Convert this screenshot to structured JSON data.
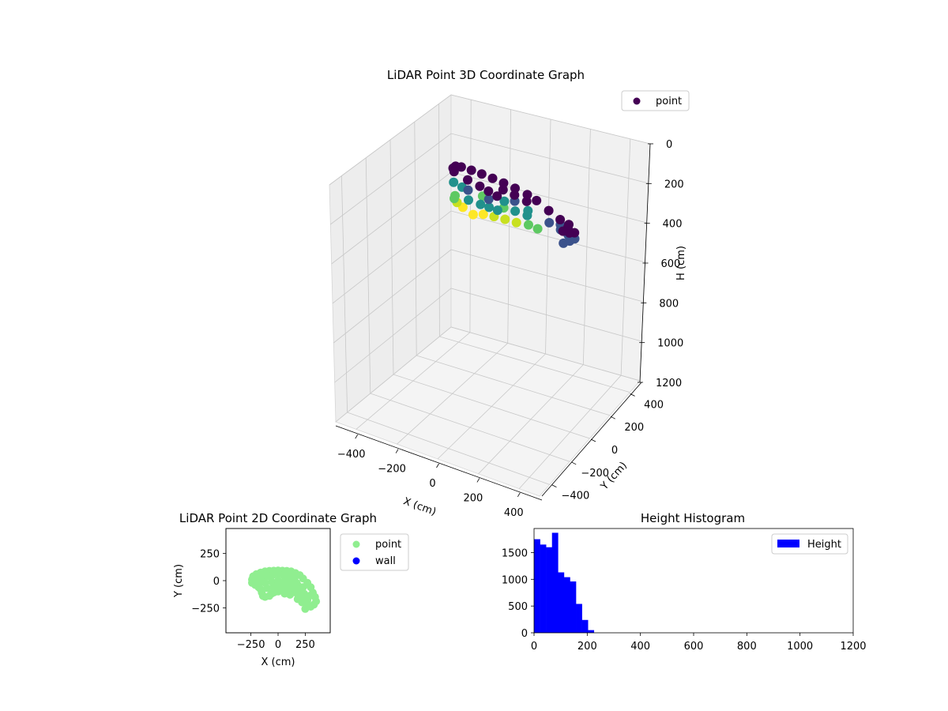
{
  "chart_data": [
    {
      "type": "scatter",
      "projection": "3d",
      "title": "LiDAR Point 3D Coordinate Graph",
      "xlabel": "X (cm)",
      "ylabel": "Y (cm)",
      "zlabel": "H (cm)",
      "xlim": [
        -500,
        500
      ],
      "ylim": [
        -500,
        500
      ],
      "zlim": [
        0,
        1200
      ],
      "z_inverted": true,
      "x_ticks": [
        -400,
        -200,
        0,
        200,
        400
      ],
      "y_ticks": [
        -400,
        -200,
        0,
        200,
        400
      ],
      "z_ticks": [
        0,
        200,
        400,
        600,
        800,
        1000,
        1200
      ],
      "colormap": "viridis",
      "legend": {
        "entries": [
          {
            "label": "point",
            "color": "#440154"
          }
        ],
        "placement": "upper-right"
      },
      "series": [
        {
          "name": "point",
          "points": [
            [
              -250,
              20,
              0
            ],
            [
              -220,
              60,
              0
            ],
            [
              -180,
              80,
              0
            ],
            [
              -120,
              90,
              0
            ],
            [
              -60,
              95,
              0
            ],
            [
              0,
              95,
              0
            ],
            [
              60,
              90,
              0
            ],
            [
              120,
              80,
              0
            ],
            [
              180,
              60,
              0
            ],
            [
              220,
              30,
              0
            ],
            [
              -260,
              -20,
              0
            ],
            [
              -200,
              -60,
              0
            ],
            [
              -140,
              -80,
              0
            ],
            [
              -100,
              -100,
              0
            ],
            [
              -60,
              -120,
              0
            ],
            [
              40,
              50,
              20
            ],
            [
              100,
              40,
              20
            ],
            [
              160,
              20,
              20
            ],
            [
              260,
              -40,
              0
            ],
            [
              300,
              -100,
              0
            ],
            [
              320,
              -160,
              0
            ],
            [
              340,
              -200,
              0
            ],
            [
              300,
              -230,
              0
            ],
            [
              260,
              -240,
              0
            ],
            [
              340,
              -120,
              0
            ],
            [
              -250,
              20,
              150
            ],
            [
              -220,
              60,
              180
            ],
            [
              -180,
              80,
              200
            ],
            [
              -120,
              90,
              220
            ],
            [
              -60,
              95,
              200
            ],
            [
              0,
              95,
              190
            ],
            [
              60,
              90,
              180
            ],
            [
              120,
              80,
              170
            ],
            [
              180,
              60,
              150
            ],
            [
              220,
              30,
              140
            ],
            [
              -260,
              -20,
              120
            ],
            [
              -200,
              -60,
              100
            ],
            [
              -140,
              -80,
              90
            ],
            [
              -100,
              -100,
              80
            ],
            [
              -60,
              -120,
              70
            ],
            [
              40,
              50,
              110
            ],
            [
              100,
              40,
              100
            ],
            [
              160,
              20,
              90
            ],
            [
              260,
              -40,
              60
            ],
            [
              300,
              -100,
              50
            ],
            [
              320,
              -160,
              40
            ],
            [
              340,
              -200,
              30
            ],
            [
              300,
              -230,
              40
            ],
            [
              260,
              -240,
              60
            ],
            [
              340,
              -120,
              50
            ],
            [
              -250,
              20,
              70
            ],
            [
              -180,
              80,
              100
            ],
            [
              -60,
              95,
              110
            ],
            [
              60,
              90,
              90
            ],
            [
              180,
              60,
              80
            ],
            [
              -200,
              -60,
              50
            ],
            [
              -100,
              -100,
              40
            ],
            [
              100,
              40,
              50
            ],
            [
              300,
              -100,
              25
            ],
            [
              320,
              -160,
              20
            ]
          ]
        }
      ]
    },
    {
      "type": "scatter",
      "title": "LiDAR Point 2D Coordinate Graph",
      "xlabel": "X (cm)",
      "ylabel": "Y (cm)",
      "xlim": [
        -480,
        480
      ],
      "ylim": [
        -480,
        480
      ],
      "x_ticks": [
        -250,
        0,
        250
      ],
      "y_ticks": [
        250,
        0,
        -250
      ],
      "x_tick_labels": [
        "−250",
        "0",
        "250"
      ],
      "y_tick_labels": [
        "250",
        "0",
        "−250"
      ],
      "legend": {
        "entries": [
          {
            "label": "point",
            "color": "#90ee90"
          },
          {
            "label": "wall",
            "color": "#0000ff"
          }
        ],
        "placement": "outside-right"
      },
      "series": [
        {
          "name": "point",
          "color": "#90ee90",
          "points": [
            [
              -240,
              10
            ],
            [
              -230,
              40
            ],
            [
              -200,
              60
            ],
            [
              -160,
              75
            ],
            [
              -120,
              85
            ],
            [
              -80,
              90
            ],
            [
              -40,
              92
            ],
            [
              0,
              94
            ],
            [
              40,
              92
            ],
            [
              80,
              90
            ],
            [
              120,
              85
            ],
            [
              160,
              70
            ],
            [
              200,
              50
            ],
            [
              230,
              20
            ],
            [
              -240,
              -20
            ],
            [
              -210,
              -40
            ],
            [
              -180,
              -60
            ],
            [
              -160,
              -80
            ],
            [
              -150,
              -110
            ],
            [
              -140,
              -140
            ],
            [
              -120,
              -150
            ],
            [
              -80,
              -140
            ],
            [
              -40,
              -110
            ],
            [
              0,
              -100
            ],
            [
              40,
              -90
            ],
            [
              80,
              -80
            ],
            [
              120,
              -90
            ],
            [
              160,
              -110
            ],
            [
              200,
              -130
            ],
            [
              240,
              -160
            ],
            [
              260,
              -200
            ],
            [
              280,
              -230
            ],
            [
              250,
              -260
            ],
            [
              300,
              -240
            ],
            [
              330,
              -220
            ],
            [
              350,
              -190
            ],
            [
              340,
              -150
            ],
            [
              320,
              -110
            ],
            [
              300,
              -60
            ],
            [
              270,
              -20
            ],
            [
              -200,
              0
            ],
            [
              -150,
              20
            ],
            [
              -100,
              40
            ],
            [
              -50,
              50
            ],
            [
              0,
              60
            ],
            [
              50,
              50
            ],
            [
              100,
              40
            ],
            [
              150,
              20
            ],
            [
              -180,
              -30
            ],
            [
              -120,
              -20
            ],
            [
              -60,
              -10
            ],
            [
              0,
              0
            ],
            [
              60,
              0
            ],
            [
              120,
              -10
            ],
            [
              180,
              -40
            ],
            [
              -100,
              -70
            ],
            [
              -40,
              -60
            ],
            [
              20,
              -50
            ],
            [
              80,
              -40
            ],
            [
              140,
              -60
            ],
            [
              200,
              -90
            ],
            [
              240,
              -120
            ],
            [
              -60,
              -120
            ],
            [
              0,
              -40
            ],
            [
              60,
              -120
            ],
            [
              110,
              -130
            ],
            [
              180,
              -170
            ],
            [
              220,
              -200
            ],
            [
              270,
              -180
            ],
            [
              -220,
              -10
            ],
            [
              -130,
              60
            ],
            [
              -30,
              80
            ],
            [
              70,
              70
            ],
            [
              170,
              -20
            ],
            [
              230,
              -60
            ],
            [
              290,
              -140
            ]
          ]
        },
        {
          "name": "wall",
          "color": "#0000ff",
          "points": []
        }
      ]
    },
    {
      "type": "bar",
      "subtype": "histogram",
      "title": "Height Histogram",
      "xlabel": "",
      "ylabel": "",
      "xlim": [
        0,
        1200
      ],
      "ylim": [
        0,
        1950
      ],
      "x_ticks": [
        0,
        200,
        400,
        600,
        800,
        1000,
        1200
      ],
      "y_ticks": [
        0,
        500,
        1000,
        1500
      ],
      "legend": {
        "entries": [
          {
            "label": "Height",
            "color": "#0000ff"
          }
        ],
        "placement": "upper-right"
      },
      "color": "#0000ff",
      "bin_width": 22.5,
      "bins_start": [
        0,
        22.5,
        45,
        67.5,
        90,
        112.5,
        135,
        157.5,
        180,
        202.5
      ],
      "values": [
        1750,
        1650,
        1600,
        1870,
        1130,
        1040,
        960,
        540,
        240,
        50
      ]
    }
  ]
}
